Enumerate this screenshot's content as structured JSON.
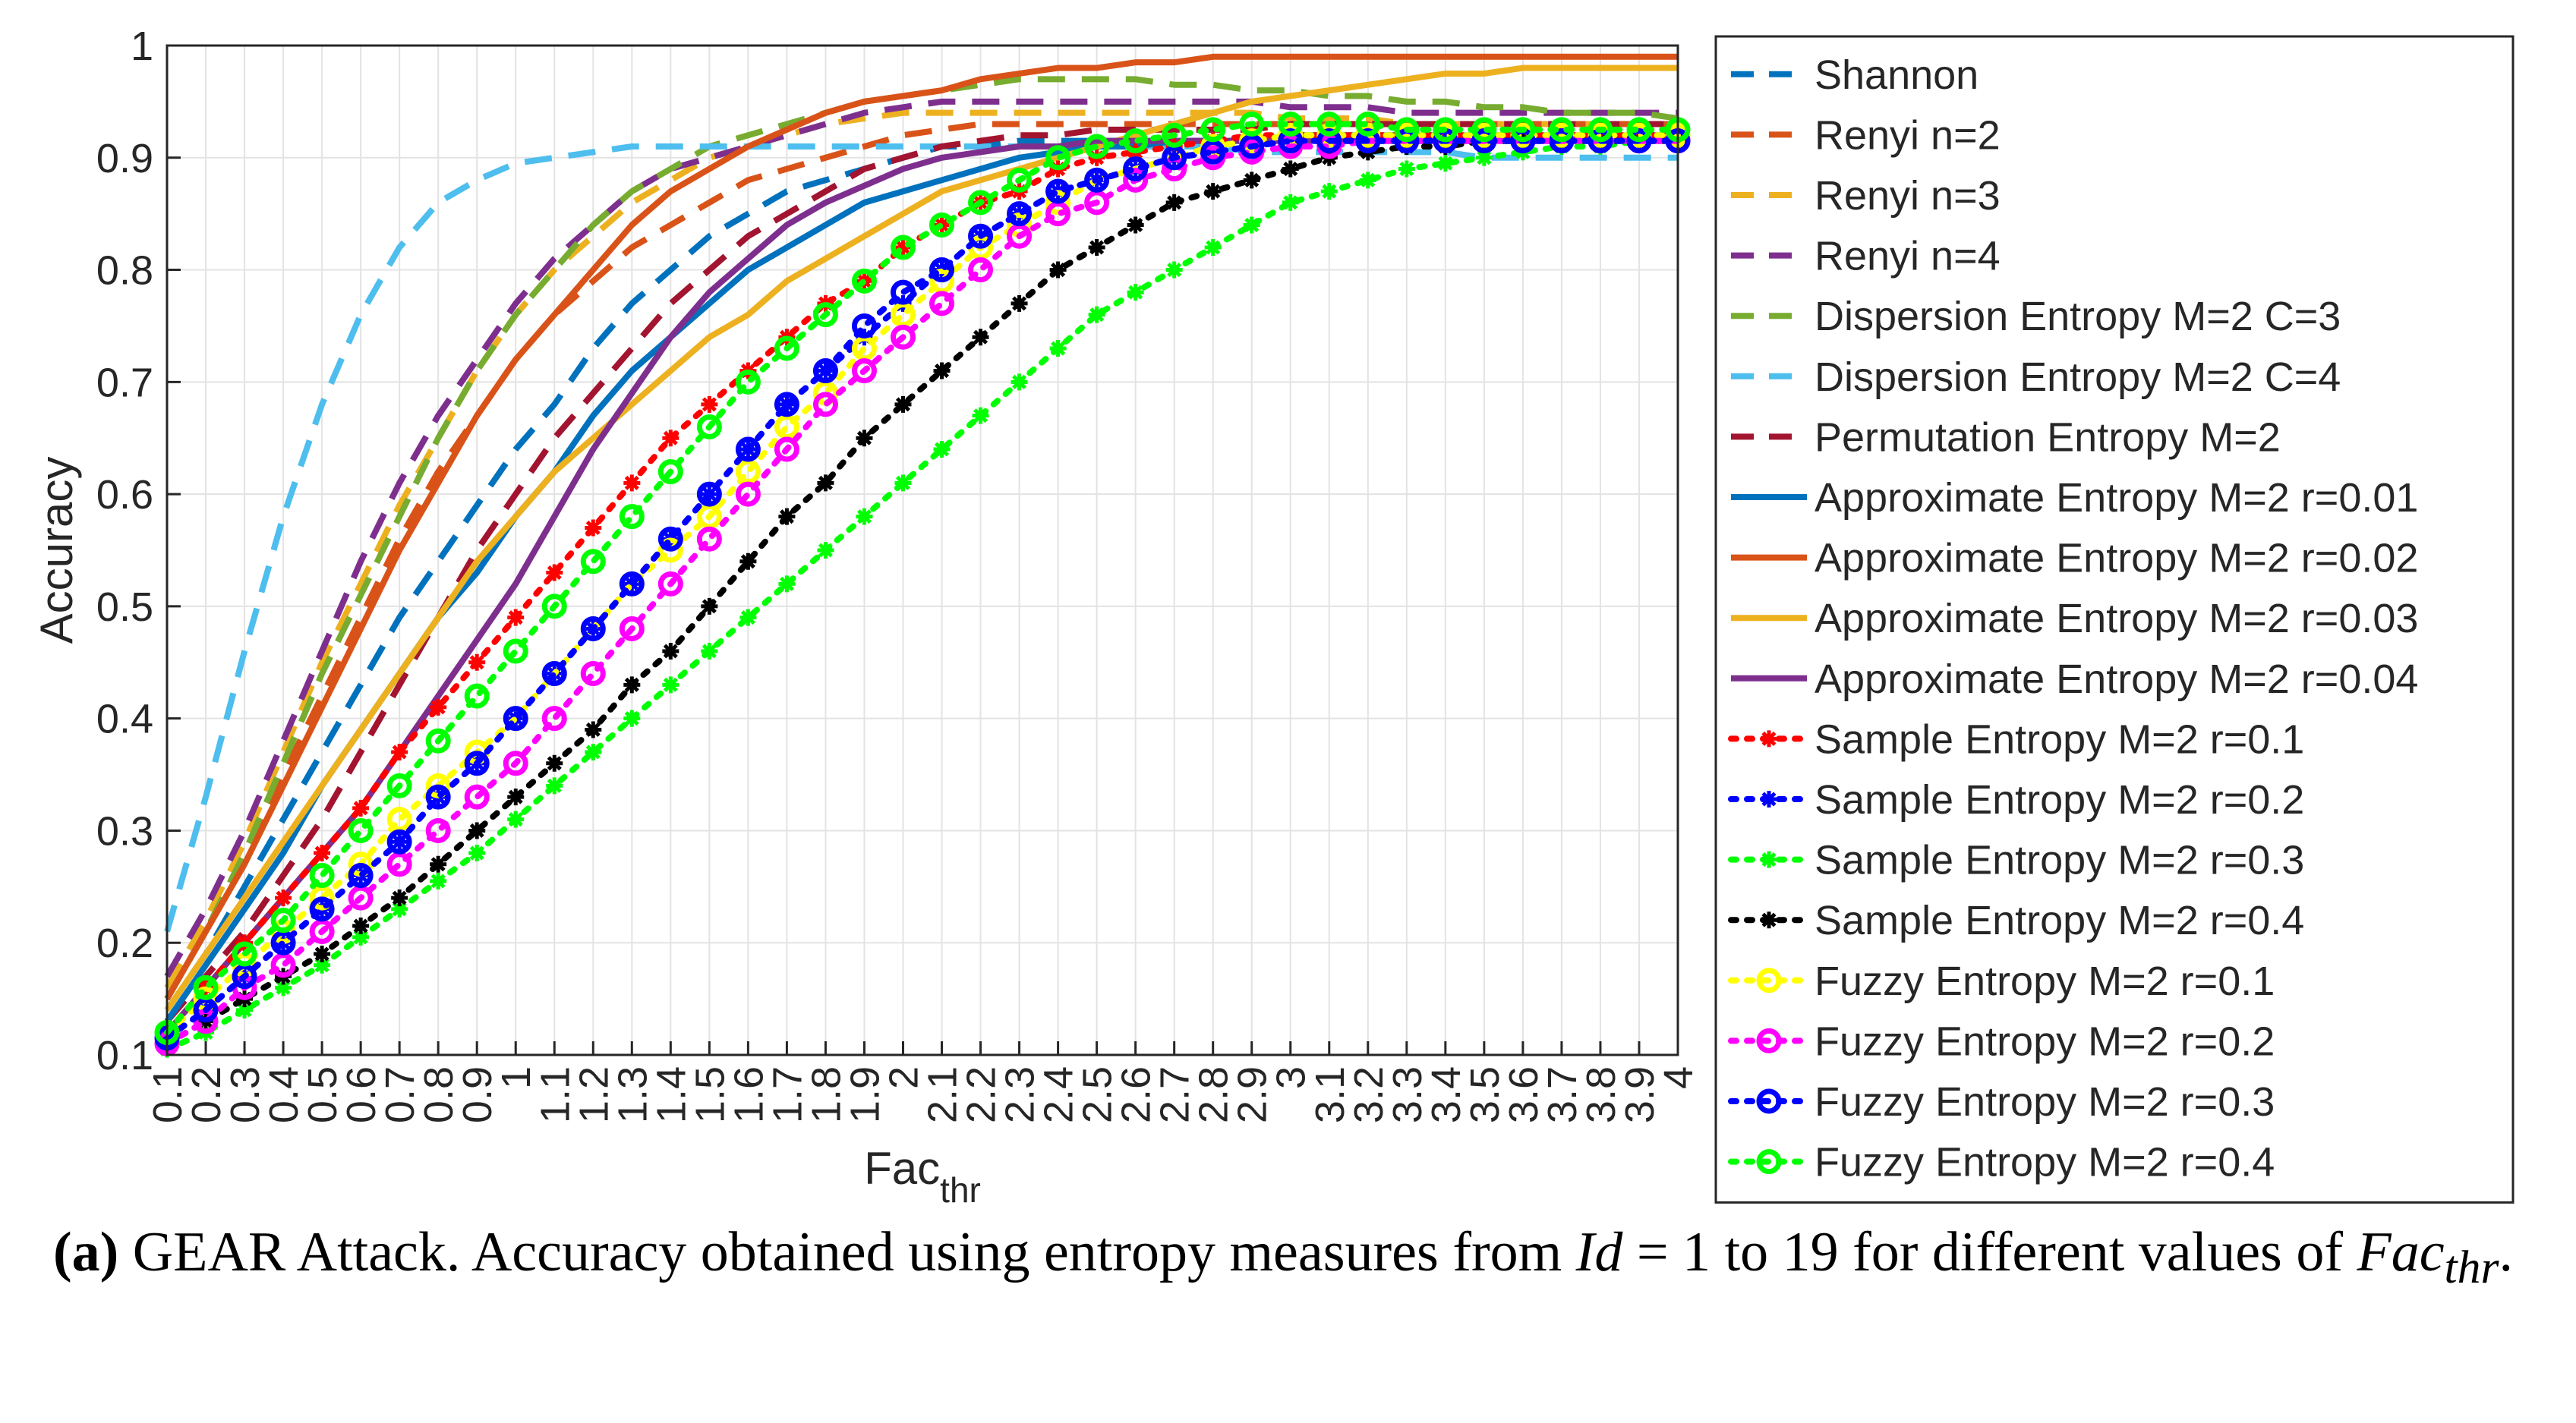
{
  "chart_data": {
    "type": "line",
    "title": "",
    "xlabel": "Fac",
    "xlabel_sub": "thr",
    "ylabel": "Accuracy",
    "ylim": [
      0.1,
      1
    ],
    "yticks": [
      "0.1",
      "0.2",
      "0.3",
      "0.4",
      "0.5",
      "0.6",
      "0.7",
      "0.8",
      "0.9",
      "1"
    ],
    "xlim": [
      0.1,
      4
    ],
    "x": [
      0.1,
      0.2,
      0.3,
      0.4,
      0.5,
      0.6,
      0.7,
      0.8,
      0.9,
      1,
      1.1,
      1.2,
      1.3,
      1.4,
      1.5,
      1.6,
      1.7,
      1.8,
      1.9,
      2,
      2.1,
      2.2,
      2.3,
      2.4,
      2.5,
      2.6,
      2.7,
      2.8,
      2.9,
      3,
      3.1,
      3.2,
      3.3,
      3.4,
      3.5,
      3.6,
      3.7,
      3.8,
      3.9,
      4
    ],
    "xtick_labels": [
      "0.1",
      "0.2",
      "0.3",
      "0.4",
      "0.5",
      "0.6",
      "0.7",
      "0.8",
      "0.9",
      "1",
      "1.1",
      "1.2",
      "1.3",
      "1.4",
      "1.5",
      "1.6",
      "1.7",
      "1.8",
      "1.9",
      "2",
      "2.1",
      "2.2",
      "2.3",
      "2.4",
      "2.5",
      "2.6",
      "2.7",
      "2.8",
      "2.9",
      "3",
      "3.1",
      "3.2",
      "3.3",
      "3.4",
      "3.5",
      "3.6",
      "3.7",
      "3.8",
      "3.9",
      "4"
    ],
    "grid": true,
    "legend_position": "right",
    "series": [
      {
        "name": "Shannon",
        "color": "#0072BD",
        "style": "dashed",
        "marker": "none",
        "values": [
          0.14,
          0.19,
          0.25,
          0.31,
          0.37,
          0.43,
          0.49,
          0.54,
          0.59,
          0.64,
          0.68,
          0.73,
          0.77,
          0.8,
          0.83,
          0.85,
          0.87,
          0.88,
          0.89,
          0.9,
          0.91,
          0.91,
          0.915,
          0.915,
          0.915,
          0.915,
          0.915,
          0.915,
          0.915,
          0.915,
          0.915,
          0.915,
          0.915,
          0.915,
          0.915,
          0.915,
          0.915,
          0.915,
          0.915,
          0.915
        ]
      },
      {
        "name": "Renyi n=2",
        "color": "#D95319",
        "style": "dashed",
        "marker": "none",
        "values": [
          0.15,
          0.21,
          0.28,
          0.35,
          0.42,
          0.49,
          0.56,
          0.62,
          0.67,
          0.72,
          0.76,
          0.79,
          0.82,
          0.84,
          0.86,
          0.88,
          0.89,
          0.9,
          0.91,
          0.92,
          0.925,
          0.93,
          0.93,
          0.93,
          0.93,
          0.93,
          0.93,
          0.93,
          0.93,
          0.93,
          0.93,
          0.93,
          0.93,
          0.93,
          0.93,
          0.93,
          0.93,
          0.93,
          0.93,
          0.93
        ]
      },
      {
        "name": "Renyi n=3",
        "color": "#EDB120",
        "style": "dashed",
        "marker": "none",
        "values": [
          0.16,
          0.22,
          0.29,
          0.37,
          0.45,
          0.52,
          0.59,
          0.65,
          0.71,
          0.76,
          0.8,
          0.83,
          0.86,
          0.88,
          0.9,
          0.91,
          0.92,
          0.93,
          0.935,
          0.94,
          0.94,
          0.94,
          0.94,
          0.94,
          0.94,
          0.94,
          0.94,
          0.94,
          0.94,
          0.935,
          0.935,
          0.935,
          0.93,
          0.93,
          0.93,
          0.93,
          0.93,
          0.93,
          0.93,
          0.93
        ]
      },
      {
        "name": "Renyi n=4",
        "color": "#7E2F8E",
        "style": "dashed",
        "marker": "none",
        "values": [
          0.17,
          0.23,
          0.3,
          0.38,
          0.46,
          0.54,
          0.61,
          0.67,
          0.72,
          0.77,
          0.81,
          0.84,
          0.87,
          0.89,
          0.9,
          0.91,
          0.92,
          0.93,
          0.94,
          0.945,
          0.95,
          0.95,
          0.95,
          0.95,
          0.95,
          0.95,
          0.95,
          0.95,
          0.95,
          0.945,
          0.945,
          0.945,
          0.94,
          0.94,
          0.94,
          0.94,
          0.94,
          0.94,
          0.94,
          0.94
        ]
      },
      {
        "name": "Dispersion Entropy M=2 C=3",
        "color": "#77AC30",
        "style": "dashed",
        "marker": "none",
        "values": [
          0.15,
          0.21,
          0.28,
          0.36,
          0.44,
          0.51,
          0.58,
          0.65,
          0.71,
          0.76,
          0.8,
          0.84,
          0.87,
          0.89,
          0.91,
          0.92,
          0.93,
          0.94,
          0.95,
          0.955,
          0.96,
          0.965,
          0.97,
          0.97,
          0.97,
          0.97,
          0.965,
          0.965,
          0.96,
          0.96,
          0.955,
          0.955,
          0.95,
          0.95,
          0.945,
          0.945,
          0.94,
          0.94,
          0.94,
          0.935
        ]
      },
      {
        "name": "Dispersion Entropy M=2 C=4",
        "color": "#4DBEEE",
        "style": "dashed",
        "marker": "none",
        "values": [
          0.21,
          0.33,
          0.46,
          0.58,
          0.68,
          0.76,
          0.82,
          0.86,
          0.88,
          0.895,
          0.9,
          0.905,
          0.91,
          0.91,
          0.91,
          0.91,
          0.91,
          0.91,
          0.91,
          0.91,
          0.91,
          0.91,
          0.91,
          0.91,
          0.91,
          0.91,
          0.91,
          0.91,
          0.905,
          0.905,
          0.905,
          0.905,
          0.905,
          0.905,
          0.9,
          0.9,
          0.9,
          0.9,
          0.9,
          0.9
        ]
      },
      {
        "name": "Permutation Entropy M=2",
        "color": "#A2142F",
        "style": "dashed",
        "marker": "none",
        "values": [
          0.13,
          0.17,
          0.21,
          0.26,
          0.31,
          0.37,
          0.43,
          0.49,
          0.55,
          0.6,
          0.65,
          0.69,
          0.73,
          0.77,
          0.8,
          0.83,
          0.85,
          0.87,
          0.89,
          0.9,
          0.91,
          0.915,
          0.92,
          0.92,
          0.925,
          0.925,
          0.925,
          0.925,
          0.925,
          0.93,
          0.93,
          0.93,
          0.93,
          0.93,
          0.93,
          0.93,
          0.93,
          0.93,
          0.93,
          0.93
        ]
      },
      {
        "name": "Approximate Entropy M=2 r=0.01",
        "color": "#0072BD",
        "style": "solid",
        "marker": "none",
        "values": [
          0.13,
          0.18,
          0.23,
          0.28,
          0.34,
          0.39,
          0.44,
          0.49,
          0.53,
          0.58,
          0.62,
          0.67,
          0.71,
          0.74,
          0.77,
          0.8,
          0.82,
          0.84,
          0.86,
          0.87,
          0.88,
          0.89,
          0.9,
          0.905,
          0.91,
          0.91,
          0.915,
          0.915,
          0.915,
          0.92,
          0.92,
          0.92,
          0.92,
          0.92,
          0.92,
          0.92,
          0.92,
          0.92,
          0.92,
          0.92
        ]
      },
      {
        "name": "Approximate Entropy M=2 r=0.02",
        "color": "#D95319",
        "style": "solid",
        "marker": "none",
        "values": [
          0.15,
          0.21,
          0.27,
          0.34,
          0.41,
          0.48,
          0.55,
          0.61,
          0.67,
          0.72,
          0.76,
          0.8,
          0.84,
          0.87,
          0.89,
          0.91,
          0.925,
          0.94,
          0.95,
          0.955,
          0.96,
          0.97,
          0.975,
          0.98,
          0.98,
          0.985,
          0.985,
          0.99,
          0.99,
          0.99,
          0.99,
          0.99,
          0.99,
          0.99,
          0.99,
          0.99,
          0.99,
          0.99,
          0.99,
          0.99
        ]
      },
      {
        "name": "Approximate Entropy M=2 r=0.03",
        "color": "#EDB120",
        "style": "solid",
        "marker": "none",
        "values": [
          0.14,
          0.19,
          0.24,
          0.29,
          0.34,
          0.39,
          0.44,
          0.49,
          0.54,
          0.58,
          0.62,
          0.65,
          0.68,
          0.71,
          0.74,
          0.76,
          0.79,
          0.81,
          0.83,
          0.85,
          0.87,
          0.88,
          0.89,
          0.9,
          0.91,
          0.92,
          0.93,
          0.94,
          0.95,
          0.955,
          0.96,
          0.965,
          0.97,
          0.975,
          0.975,
          0.98,
          0.98,
          0.98,
          0.98,
          0.98
        ]
      },
      {
        "name": "Approximate Entropy M=2 r=0.04",
        "color": "#7E2F8E",
        "style": "solid",
        "marker": "none",
        "values": [
          0.12,
          0.16,
          0.2,
          0.24,
          0.28,
          0.32,
          0.37,
          0.42,
          0.47,
          0.52,
          0.58,
          0.64,
          0.69,
          0.74,
          0.78,
          0.81,
          0.84,
          0.86,
          0.875,
          0.89,
          0.9,
          0.905,
          0.91,
          0.91,
          0.915,
          0.915,
          0.915,
          0.915,
          0.915,
          0.915,
          0.915,
          0.915,
          0.915,
          0.915,
          0.915,
          0.915,
          0.915,
          0.915,
          0.915,
          0.915
        ]
      },
      {
        "name": "Sample Entropy M=2 r=0.1",
        "color": "#FF0000",
        "style": "dotted",
        "marker": "asterisk",
        "values": [
          0.12,
          0.16,
          0.2,
          0.24,
          0.28,
          0.32,
          0.37,
          0.41,
          0.45,
          0.49,
          0.53,
          0.57,
          0.61,
          0.65,
          0.68,
          0.71,
          0.74,
          0.77,
          0.79,
          0.82,
          0.84,
          0.86,
          0.87,
          0.89,
          0.9,
          0.905,
          0.91,
          0.915,
          0.92,
          0.92,
          0.92,
          0.92,
          0.92,
          0.92,
          0.92,
          0.92,
          0.92,
          0.92,
          0.92,
          0.92
        ]
      },
      {
        "name": "Sample Entropy M=2 r=0.2",
        "color": "#0000FF",
        "style": "dotted",
        "marker": "asterisk",
        "values": [
          0.115,
          0.14,
          0.17,
          0.2,
          0.23,
          0.26,
          0.29,
          0.33,
          0.36,
          0.4,
          0.44,
          0.48,
          0.52,
          0.56,
          0.6,
          0.64,
          0.68,
          0.71,
          0.74,
          0.77,
          0.8,
          0.83,
          0.85,
          0.87,
          0.88,
          0.89,
          0.9,
          0.905,
          0.91,
          0.915,
          0.915,
          0.915,
          0.915,
          0.915,
          0.915,
          0.915,
          0.915,
          0.915,
          0.915,
          0.915
        ]
      },
      {
        "name": "Sample Entropy M=2 r=0.3",
        "color": "#00FF00",
        "style": "dotted",
        "marker": "asterisk",
        "values": [
          0.105,
          0.12,
          0.14,
          0.16,
          0.18,
          0.205,
          0.23,
          0.255,
          0.28,
          0.31,
          0.34,
          0.37,
          0.4,
          0.43,
          0.46,
          0.49,
          0.52,
          0.55,
          0.58,
          0.61,
          0.64,
          0.67,
          0.7,
          0.73,
          0.76,
          0.78,
          0.8,
          0.82,
          0.84,
          0.86,
          0.87,
          0.88,
          0.89,
          0.895,
          0.9,
          0.905,
          0.91,
          0.91,
          0.915,
          0.915
        ]
      },
      {
        "name": "Sample Entropy M=2 r=0.4",
        "color": "#000000",
        "style": "dotted",
        "marker": "asterisk",
        "values": [
          0.11,
          0.13,
          0.15,
          0.17,
          0.19,
          0.215,
          0.24,
          0.27,
          0.3,
          0.33,
          0.36,
          0.39,
          0.43,
          0.46,
          0.5,
          0.54,
          0.58,
          0.61,
          0.65,
          0.68,
          0.71,
          0.74,
          0.77,
          0.8,
          0.82,
          0.84,
          0.86,
          0.87,
          0.88,
          0.89,
          0.9,
          0.905,
          0.91,
          0.91,
          0.915,
          0.915,
          0.915,
          0.915,
          0.915,
          0.915
        ]
      },
      {
        "name": "Fuzzy Entropy M=2 r=0.1",
        "color": "#FFFF00",
        "style": "dotted",
        "marker": "circle",
        "values": [
          0.12,
          0.15,
          0.18,
          0.21,
          0.24,
          0.27,
          0.31,
          0.34,
          0.37,
          0.4,
          0.44,
          0.48,
          0.52,
          0.55,
          0.58,
          0.62,
          0.66,
          0.69,
          0.73,
          0.76,
          0.79,
          0.82,
          0.84,
          0.86,
          0.88,
          0.89,
          0.9,
          0.91,
          0.915,
          0.92,
          0.92,
          0.92,
          0.92,
          0.92,
          0.92,
          0.92,
          0.92,
          0.92,
          0.92,
          0.92
        ]
      },
      {
        "name": "Fuzzy Entropy M=2 r=0.2",
        "color": "#FF00FF",
        "style": "dotted",
        "marker": "circle",
        "values": [
          0.11,
          0.13,
          0.16,
          0.18,
          0.21,
          0.24,
          0.27,
          0.3,
          0.33,
          0.36,
          0.4,
          0.44,
          0.48,
          0.52,
          0.56,
          0.6,
          0.64,
          0.68,
          0.71,
          0.74,
          0.77,
          0.8,
          0.83,
          0.85,
          0.86,
          0.88,
          0.89,
          0.9,
          0.905,
          0.91,
          0.91,
          0.915,
          0.915,
          0.915,
          0.915,
          0.915,
          0.915,
          0.915,
          0.915,
          0.915
        ]
      },
      {
        "name": "Fuzzy Entropy M=2 r=0.3",
        "color": "#0000FF",
        "style": "dotted",
        "marker": "circle",
        "values": [
          0.115,
          0.14,
          0.17,
          0.2,
          0.23,
          0.26,
          0.29,
          0.33,
          0.36,
          0.4,
          0.44,
          0.48,
          0.52,
          0.56,
          0.6,
          0.64,
          0.68,
          0.71,
          0.75,
          0.78,
          0.8,
          0.83,
          0.85,
          0.87,
          0.88,
          0.89,
          0.9,
          0.905,
          0.91,
          0.915,
          0.915,
          0.915,
          0.915,
          0.915,
          0.915,
          0.915,
          0.915,
          0.915,
          0.915,
          0.915
        ]
      },
      {
        "name": "Fuzzy Entropy M=2 r=0.4",
        "color": "#00FF00",
        "style": "dotted",
        "marker": "circle",
        "values": [
          0.12,
          0.16,
          0.19,
          0.22,
          0.26,
          0.3,
          0.34,
          0.38,
          0.42,
          0.46,
          0.5,
          0.54,
          0.58,
          0.62,
          0.66,
          0.7,
          0.73,
          0.76,
          0.79,
          0.82,
          0.84,
          0.86,
          0.88,
          0.9,
          0.91,
          0.915,
          0.92,
          0.925,
          0.93,
          0.93,
          0.93,
          0.93,
          0.925,
          0.925,
          0.925,
          0.925,
          0.925,
          0.925,
          0.925,
          0.925
        ]
      }
    ]
  },
  "caption": {
    "label": "(a)",
    "text_before": " GEAR Attack. Accuracy obtained using entropy measures from ",
    "math_var": "Id",
    "math_eq": " = 1",
    "text_after": " to 19 for different values of ",
    "math_fac": "Fac",
    "math_sub": "thr",
    "end": "."
  }
}
